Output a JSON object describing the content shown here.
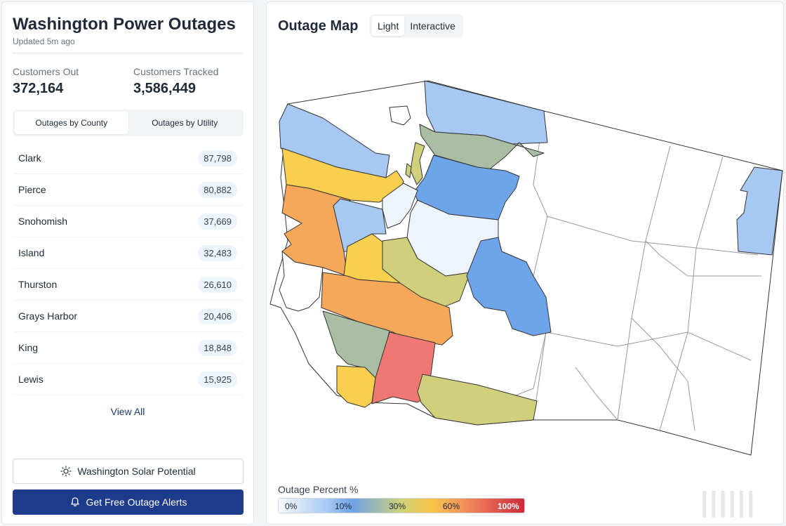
{
  "sidebar": {
    "title": "Washington Power Outages",
    "updated": "Updated 5m ago",
    "stats": {
      "customers_out_label": "Customers Out",
      "customers_out_value": "372,164",
      "customers_tracked_label": "Customers Tracked",
      "customers_tracked_value": "3,586,449"
    },
    "tabs": [
      {
        "label": "Outages by County",
        "active": true
      },
      {
        "label": "Outages by Utility",
        "active": false
      }
    ],
    "counties": [
      {
        "name": "Clark",
        "count": "87,798"
      },
      {
        "name": "Pierce",
        "count": "80,882"
      },
      {
        "name": "Snohomish",
        "count": "37,669"
      },
      {
        "name": "Island",
        "count": "32,483"
      },
      {
        "name": "Thurston",
        "count": "26,610"
      },
      {
        "name": "Grays Harbor",
        "count": "20,406"
      },
      {
        "name": "King",
        "count": "18,848"
      },
      {
        "name": "Lewis",
        "count": "15,925"
      }
    ],
    "view_all": "View All",
    "solar_button": "Washington Solar Potential",
    "alert_button": "Get Free Outage Alerts"
  },
  "map": {
    "title": "Outage Map",
    "tabs": [
      {
        "label": "Light",
        "active": true
      },
      {
        "label": "Interactive",
        "active": false
      }
    ],
    "legend": {
      "title": "Outage Percent %",
      "ticks": [
        "0%",
        "10%",
        "30%",
        "60%",
        "100%"
      ]
    },
    "colors": {
      "none": "#ffffff",
      "very_low": "#eef4fb",
      "low": "#a7c8f3",
      "med_blue": "#6ea4ea",
      "sage": "#a8bda1",
      "olive": "#cfcf7c",
      "yellow": "#f8cf4f",
      "orange": "#f5a85a",
      "red": "#f07872",
      "accent": "#1e3a8a"
    },
    "watermark": "||||||"
  }
}
